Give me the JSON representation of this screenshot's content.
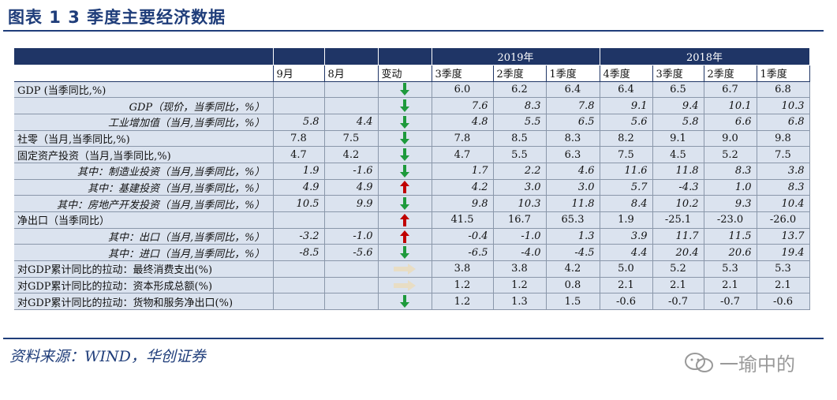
{
  "title": "图表 1   3 季度主要经济数据",
  "header": {
    "year_2019": "2019年",
    "year_2018": "2018年",
    "cols": [
      "9月",
      "8月",
      "变动",
      "3季度",
      "2季度",
      "1季度",
      "4季度",
      "3季度",
      "2季度",
      "1季度"
    ]
  },
  "rows": [
    {
      "label": "GDP (当季同比,%)",
      "indent": false,
      "italic": false,
      "v": [
        "",
        "",
        "",
        "6.0",
        "6.2",
        "6.4",
        "6.4",
        "6.5",
        "6.7",
        "6.8"
      ],
      "arrow": "down"
    },
    {
      "label": "GDP（现价，当季同比，%）",
      "indent": true,
      "italic": true,
      "v": [
        "",
        "",
        "",
        "7.6",
        "8.3",
        "7.8",
        "9.1",
        "9.4",
        "10.1",
        "10.3"
      ],
      "arrow": "down"
    },
    {
      "label": "工业增加值（当月,当季同比，%）",
      "indent": true,
      "italic": true,
      "v": [
        "5.8",
        "4.4",
        "",
        "4.8",
        "5.5",
        "6.5",
        "5.6",
        "5.8",
        "6.6",
        "6.8"
      ],
      "arrow": "down"
    },
    {
      "label": "社零（当月,当季同比,%)",
      "indent": false,
      "italic": false,
      "v": [
        "7.8",
        "7.5",
        "",
        "7.8",
        "8.5",
        "8.3",
        "8.2",
        "9.1",
        "9.0",
        "9.8"
      ],
      "arrow": "down"
    },
    {
      "label": "固定资产投资（当月,当季同比,%)",
      "indent": false,
      "italic": false,
      "v": [
        "4.7",
        "4.2",
        "",
        "4.7",
        "5.5",
        "6.3",
        "7.5",
        "4.5",
        "5.2",
        "7.5"
      ],
      "arrow": "down"
    },
    {
      "label": "其中：制造业投资（当月,当季同比，%）",
      "indent": true,
      "italic": true,
      "v": [
        "1.9",
        "-1.6",
        "",
        "1.7",
        "2.2",
        "4.6",
        "11.6",
        "11.8",
        "8.3",
        "3.8"
      ],
      "arrow": "down"
    },
    {
      "label": "其中：基建投资（当月,当季同比，%）",
      "indent": true,
      "italic": true,
      "v": [
        "4.9",
        "4.9",
        "",
        "4.2",
        "3.0",
        "3.0",
        "5.7",
        "-4.3",
        "1.0",
        "8.3"
      ],
      "arrow": "up"
    },
    {
      "label": "其中：房地产开发投资（当月,当季同比，%）",
      "indent": true,
      "italic": true,
      "v": [
        "10.5",
        "9.9",
        "",
        "9.8",
        "10.3",
        "11.8",
        "8.4",
        "10.2",
        "9.3",
        "10.4"
      ],
      "arrow": "down"
    },
    {
      "label": "净出口（当季同比）",
      "indent": false,
      "italic": false,
      "v": [
        "",
        "",
        "",
        "41.5",
        "16.7",
        "65.3",
        "1.9",
        "-25.1",
        "-23.0",
        "-26.0"
      ],
      "arrow": "up"
    },
    {
      "label": "其中：出口（当月,当季同比，%）",
      "indent": true,
      "italic": true,
      "v": [
        "-3.2",
        "-1.0",
        "",
        "-0.4",
        "-1.0",
        "1.3",
        "3.9",
        "11.7",
        "11.5",
        "13.7"
      ],
      "arrow": "up"
    },
    {
      "label": "其中：进口（当月,当季同比，%）",
      "indent": true,
      "italic": true,
      "v": [
        "-8.5",
        "-5.6",
        "",
        "-6.5",
        "-4.0",
        "-4.5",
        "4.4",
        "20.4",
        "20.6",
        "19.4"
      ],
      "arrow": "down"
    },
    {
      "label": "对GDP累计同比的拉动：最终消费支出(%)",
      "indent": false,
      "italic": false,
      "v": [
        "",
        "",
        "",
        "3.8",
        "3.8",
        "4.2",
        "5.0",
        "5.2",
        "5.3",
        "5.3"
      ],
      "arrow": "right"
    },
    {
      "label": "对GDP累计同比的拉动：资本形成总额(%)",
      "indent": false,
      "italic": false,
      "v": [
        "",
        "",
        "",
        "1.2",
        "1.2",
        "0.8",
        "2.1",
        "2.1",
        "2.1",
        "2.1"
      ],
      "arrow": "right"
    },
    {
      "label": "对GDP累计同比的拉动：货物和服务净出口(%)",
      "indent": false,
      "italic": false,
      "v": [
        "",
        "",
        "",
        "1.2",
        "1.3",
        "1.5",
        "-0.6",
        "-0.7",
        "-0.7",
        "-0.6"
      ],
      "arrow": "down"
    }
  ],
  "colors": {
    "up": "#c00000",
    "down": "#1e9a3c",
    "right": "#e8ddc4",
    "header_bg": "#1f3566",
    "row_bg": "#dbe3ef"
  },
  "source": "资料来源：WIND，华创证券",
  "watermark": "一瑜中的"
}
